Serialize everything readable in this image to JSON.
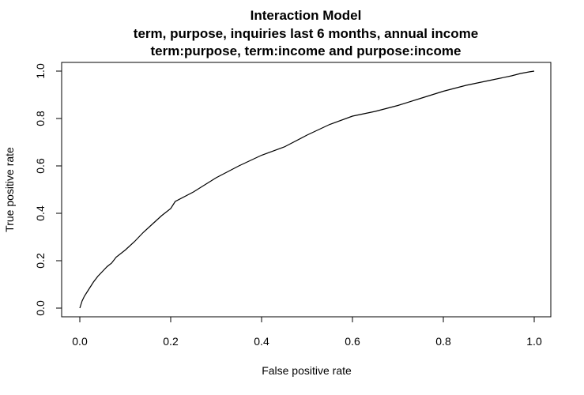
{
  "chart_data": {
    "type": "line",
    "title": [
      "Interaction Model",
      "term, purpose, inquiries last 6 months, annual income",
      "term:purpose, term:income and purpose:income"
    ],
    "xlabel": "False positive rate",
    "ylabel": "True positive rate",
    "xlim": [
      0,
      1
    ],
    "ylim": [
      0,
      1
    ],
    "x_ticks": [
      "0.0",
      "0.2",
      "0.4",
      "0.6",
      "0.8",
      "1.0"
    ],
    "y_ticks": [
      "0.0",
      "0.2",
      "0.4",
      "0.6",
      "0.8",
      "1.0"
    ],
    "grid": false,
    "series": [
      {
        "x": [
          0.0,
          0.005,
          0.01,
          0.02,
          0.03,
          0.04,
          0.05,
          0.06,
          0.07,
          0.08,
          0.1,
          0.12,
          0.14,
          0.16,
          0.18,
          0.2,
          0.21,
          0.25,
          0.3,
          0.35,
          0.4,
          0.45,
          0.5,
          0.55,
          0.6,
          0.65,
          0.7,
          0.75,
          0.8,
          0.85,
          0.9,
          0.95,
          0.97,
          0.99,
          1.0
        ],
        "y": [
          0.0,
          0.03,
          0.05,
          0.08,
          0.11,
          0.135,
          0.155,
          0.175,
          0.19,
          0.215,
          0.245,
          0.28,
          0.32,
          0.355,
          0.39,
          0.42,
          0.45,
          0.49,
          0.55,
          0.6,
          0.645,
          0.68,
          0.73,
          0.775,
          0.81,
          0.83,
          0.855,
          0.885,
          0.915,
          0.94,
          0.96,
          0.98,
          0.99,
          0.997,
          1.0
        ]
      }
    ]
  }
}
